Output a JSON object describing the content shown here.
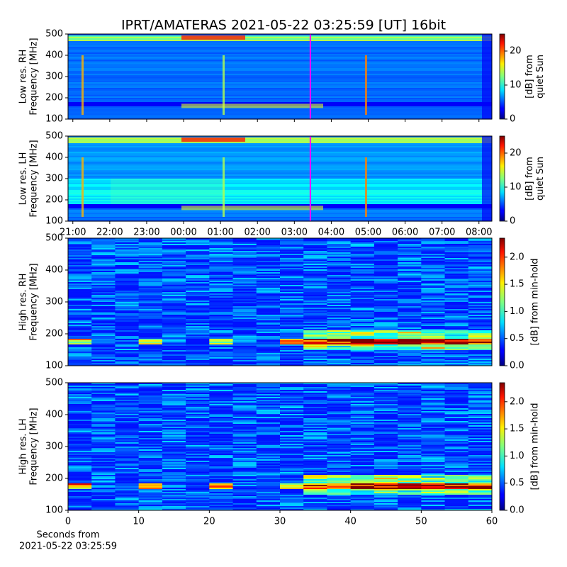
{
  "title": "IPRT/AMATERAS 2021-05-22 03:25:59 [UT]   16bit",
  "chart_data": [
    {
      "type": "heatmap",
      "ylabel": [
        "Low res. RH",
        "Frequency [MHz]"
      ],
      "ylim": [
        100,
        500
      ],
      "yticks": [
        100,
        200,
        300,
        400,
        500
      ],
      "xlim": [
        20.87,
        32.35
      ],
      "xticks": [],
      "colormap": "jet",
      "clim": [
        0,
        25
      ],
      "cticks": [
        0,
        10,
        20
      ],
      "colorbar_label": [
        "[dB] from",
        "quiet Sun"
      ],
      "marker_x": 27.433,
      "marker_color": "#ff00ff"
    },
    {
      "type": "heatmap",
      "ylabel": [
        "Low res. LH",
        "Frequency [MHz]"
      ],
      "ylim": [
        100,
        500
      ],
      "yticks": [
        100,
        200,
        300,
        400,
        500
      ],
      "xlim": [
        20.87,
        32.35
      ],
      "xticks": [
        {
          "value": 21,
          "label": "21:00"
        },
        {
          "value": 22,
          "label": "22:00"
        },
        {
          "value": 23,
          "label": "23:00"
        },
        {
          "value": 24,
          "label": "00:00"
        },
        {
          "value": 25,
          "label": "01:00"
        },
        {
          "value": 26,
          "label": "02:00"
        },
        {
          "value": 27,
          "label": "03:00"
        },
        {
          "value": 28,
          "label": "04:00"
        },
        {
          "value": 29,
          "label": "05:00"
        },
        {
          "value": 30,
          "label": "06:00"
        },
        {
          "value": 31,
          "label": "07:00"
        },
        {
          "value": 32,
          "label": "08:00"
        }
      ],
      "colormap": "jet",
      "clim": [
        0,
        25
      ],
      "cticks": [
        0,
        10,
        20
      ],
      "colorbar_label": [
        "[dB] from",
        "quiet Sun"
      ],
      "marker_x": 27.433,
      "marker_color": "#ff00ff"
    },
    {
      "type": "heatmap",
      "ylabel": [
        "High res. RH",
        "Frequency [MHz]"
      ],
      "ylim": [
        100,
        500
      ],
      "yticks": [
        100,
        200,
        300,
        400,
        500
      ],
      "xlim": [
        0,
        60
      ],
      "xticks": [],
      "colormap": "jet",
      "clim": [
        0,
        2.35
      ],
      "cticks": [
        {
          "value": 0,
          "label": "0.0"
        },
        {
          "value": 0.5,
          "label": "0.5"
        },
        {
          "value": 1,
          "label": "1.0"
        },
        {
          "value": 1.5,
          "label": "1.5"
        },
        {
          "value": 2,
          "label": "2.0"
        }
      ],
      "colorbar_label": [
        "[dB] from min-hold"
      ]
    },
    {
      "type": "heatmap",
      "ylabel": [
        "High res. LH",
        "Frequency [MHz]"
      ],
      "ylim": [
        100,
        500
      ],
      "yticks": [
        100,
        200,
        300,
        400,
        500
      ],
      "xlim": [
        0,
        60
      ],
      "xticks": [
        0,
        10,
        20,
        30,
        40,
        50,
        60
      ],
      "xlabel": [
        "Seconds from",
        "2021-05-22 03:25:59"
      ],
      "colormap": "jet",
      "clim": [
        0,
        2.35
      ],
      "cticks": [
        {
          "value": 0,
          "label": "0.0"
        },
        {
          "value": 0.5,
          "label": "0.5"
        },
        {
          "value": 1,
          "label": "1.0"
        },
        {
          "value": 1.5,
          "label": "1.5"
        },
        {
          "value": 2,
          "label": "2.0"
        }
      ],
      "colorbar_label": [
        "[dB] from min-hold"
      ]
    }
  ]
}
